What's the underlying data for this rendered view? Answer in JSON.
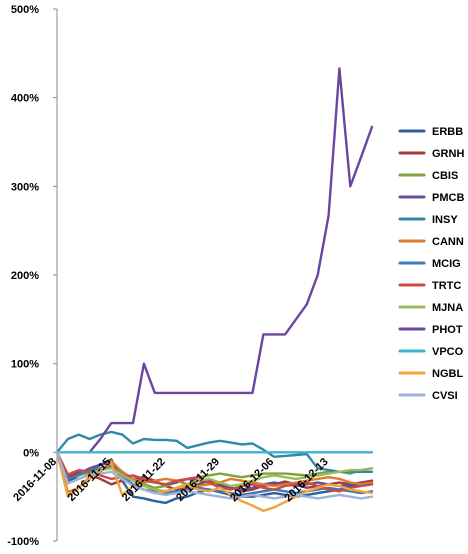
{
  "chart_data": {
    "type": "line",
    "ylim": [
      -100,
      500
    ],
    "y_ticks": [
      -100,
      0,
      100,
      200,
      300,
      400,
      500
    ],
    "y_tick_labels": [
      "-100%",
      "0%",
      "100%",
      "200%",
      "300%",
      "400%",
      "500%"
    ],
    "x_tick_labels": [
      "2016-11-08",
      "2016-11-15",
      "2016-11-22",
      "2016-11-29",
      "2016-12-06",
      "2016-12-13"
    ],
    "x_tick_index": [
      0,
      5,
      10,
      15,
      20,
      25
    ],
    "n_points": 30,
    "grid": false,
    "legend_position": "right",
    "series": [
      {
        "name": "ERBB",
        "color": "#2E5F99",
        "values": [
          0,
          -34,
          -26,
          -20,
          -14,
          -8,
          -32,
          -50,
          -52,
          -55,
          -57,
          -52,
          -50,
          -45,
          -42,
          -45,
          -48,
          -50,
          -50,
          -48,
          -46,
          -48,
          -50,
          -48,
          -46,
          -44,
          -42,
          -38,
          -36,
          -32
        ]
      },
      {
        "name": "GRNH",
        "color": "#A33A36",
        "values": [
          0,
          -28,
          -22,
          -25,
          -30,
          -36,
          -32,
          -30,
          -28,
          -32,
          -38,
          -42,
          -40,
          -36,
          -32,
          -36,
          -40,
          -44,
          -42,
          -38,
          -36,
          -33,
          -36,
          -40,
          -38,
          -36,
          -34,
          -36,
          -34,
          -32
        ]
      },
      {
        "name": "CBIS",
        "color": "#7FA33D",
        "values": [
          0,
          -30,
          -26,
          -22,
          -18,
          -16,
          -24,
          -30,
          -36,
          -40,
          -38,
          -34,
          -30,
          -28,
          -26,
          -24,
          -26,
          -28,
          -26,
          -24,
          -24,
          -24,
          -25,
          -26,
          -24,
          -22,
          -22,
          -24,
          -20,
          -18
        ]
      },
      {
        "name": "PMCB",
        "color": "#6A4C93",
        "values": [
          0,
          -32,
          -24,
          -18,
          -14,
          -12,
          -22,
          -30,
          -32,
          -34,
          -36,
          -34,
          -30,
          -32,
          -34,
          -38,
          -40,
          -42,
          -40,
          -36,
          -34,
          -36,
          -38,
          -36,
          -34,
          -36,
          -38,
          -36,
          -34,
          -36
        ]
      },
      {
        "name": "INSY",
        "color": "#2F8AA5",
        "values": [
          0,
          15,
          20,
          15,
          20,
          23,
          20,
          10,
          15,
          14,
          14,
          13,
          5,
          8,
          11,
          13,
          11,
          9,
          10,
          3,
          -5,
          -4,
          -3,
          -2,
          -18,
          -20,
          -22,
          -22,
          -22,
          -22
        ]
      },
      {
        "name": "CANN",
        "color": "#DD7C2E",
        "values": [
          0,
          -45,
          -40,
          -28,
          -22,
          -10,
          -22,
          -30,
          -34,
          -32,
          -30,
          -32,
          -36,
          -38,
          -36,
          -34,
          -30,
          -32,
          -34,
          -36,
          -38,
          -36,
          -34,
          -32,
          -30,
          -28,
          -30,
          -34,
          -36,
          -34
        ]
      },
      {
        "name": "MCIG",
        "color": "#3E79B8",
        "values": [
          0,
          -30,
          -25,
          -20,
          -18,
          -15,
          -28,
          -36,
          -42,
          -44,
          -46,
          -44,
          -42,
          -40,
          -42,
          -44,
          -46,
          -48,
          -46,
          -44,
          -42,
          -44,
          -46,
          -44,
          -42,
          -40,
          -42,
          -44,
          -46,
          -44
        ]
      },
      {
        "name": "TRTC",
        "color": "#C84B48",
        "values": [
          0,
          -25,
          -20,
          -22,
          -26,
          -30,
          -28,
          -26,
          -30,
          -34,
          -36,
          -32,
          -30,
          -28,
          -34,
          -40,
          -42,
          -38,
          -36,
          -40,
          -42,
          -38,
          -36,
          -34,
          -38,
          -42,
          -44,
          -40,
          -38,
          -36
        ]
      },
      {
        "name": "MJNA",
        "color": "#9BBB59",
        "values": [
          0,
          -35,
          -30,
          -25,
          -20,
          -18,
          -26,
          -32,
          -38,
          -42,
          -44,
          -40,
          -36,
          -32,
          -30,
          -34,
          -38,
          -36,
          -32,
          -28,
          -26,
          -28,
          -30,
          -28,
          -26,
          -24,
          -22,
          -20,
          -20,
          -18
        ]
      },
      {
        "name": "PHOT",
        "color": "#6B46A0",
        "values": [
          null,
          null,
          null,
          0,
          15,
          33,
          33,
          33,
          100,
          67,
          67,
          67,
          67,
          67,
          67,
          67,
          67,
          67,
          67,
          133,
          133,
          133,
          150,
          167,
          200,
          267,
          433,
          300,
          333,
          367
        ]
      },
      {
        "name": "VPCO",
        "color": "#40B3CC",
        "values": [
          0,
          0,
          0,
          0,
          0,
          0,
          0,
          0,
          0,
          0,
          0,
          0,
          0,
          0,
          0,
          0,
          0,
          0,
          0,
          0,
          0,
          0,
          0,
          0,
          0,
          0,
          0,
          0,
          0,
          0
        ]
      },
      {
        "name": "NGBL",
        "color": "#F4A23E",
        "values": [
          0,
          -50,
          -40,
          -30,
          -20,
          -12,
          -48,
          -38,
          -42,
          -46,
          -44,
          -40,
          -38,
          -42,
          -44,
          -40,
          -48,
          -55,
          -60,
          -66,
          -62,
          -56,
          -50,
          -44,
          -40,
          -36,
          -38,
          -42,
          -44,
          -46
        ]
      },
      {
        "name": "CVSI",
        "color": "#9FB3D9",
        "values": [
          0,
          -35,
          -30,
          -26,
          -24,
          -22,
          -30,
          -38,
          -42,
          -46,
          -48,
          -46,
          -44,
          -46,
          -48,
          -50,
          -52,
          -50,
          -48,
          -50,
          -52,
          -50,
          -48,
          -50,
          -52,
          -50,
          -48,
          -50,
          -52,
          -50
        ]
      }
    ]
  }
}
